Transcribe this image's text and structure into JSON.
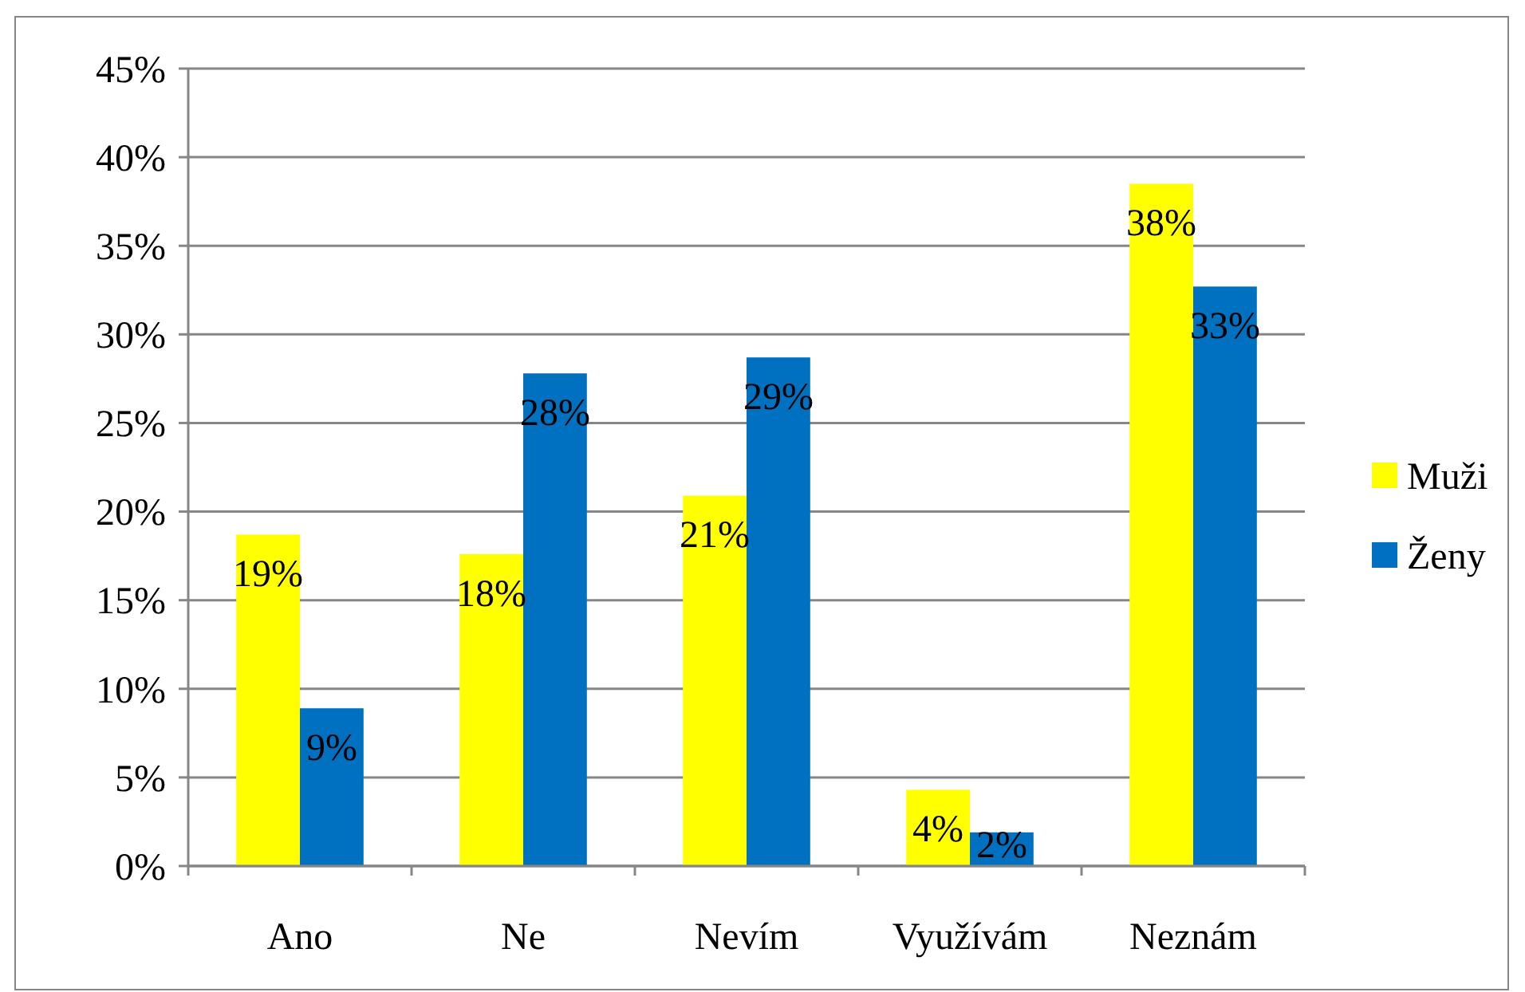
{
  "chart_data": {
    "type": "bar",
    "categories": [
      "Ano",
      "Ne",
      "Nevím",
      "Využívám",
      "Neznám"
    ],
    "series": [
      {
        "name": "Muži",
        "color": "#ffff00",
        "values": [
          18.7,
          17.6,
          20.9,
          4.3,
          38.5
        ],
        "value_labels": [
          "19%",
          "18%",
          "21%",
          "4%",
          "38%"
        ]
      },
      {
        "name": "Ženy",
        "color": "#0070c0",
        "values": [
          8.9,
          27.8,
          28.7,
          1.9,
          32.7
        ],
        "value_labels": [
          "9%",
          "28%",
          "29%",
          "2%",
          "33%"
        ]
      }
    ],
    "ylim": [
      0,
      45
    ],
    "yticks": [
      {
        "value": 0,
        "label": "0%"
      },
      {
        "value": 5,
        "label": "5%"
      },
      {
        "value": 10,
        "label": "10%"
      },
      {
        "value": 15,
        "label": "15%"
      },
      {
        "value": 20,
        "label": "20%"
      },
      {
        "value": 25,
        "label": "25%"
      },
      {
        "value": 30,
        "label": "30%"
      },
      {
        "value": 35,
        "label": "35%"
      },
      {
        "value": 40,
        "label": "40%"
      },
      {
        "value": 45,
        "label": "45%"
      }
    ],
    "grid": "y",
    "legend": "right"
  }
}
